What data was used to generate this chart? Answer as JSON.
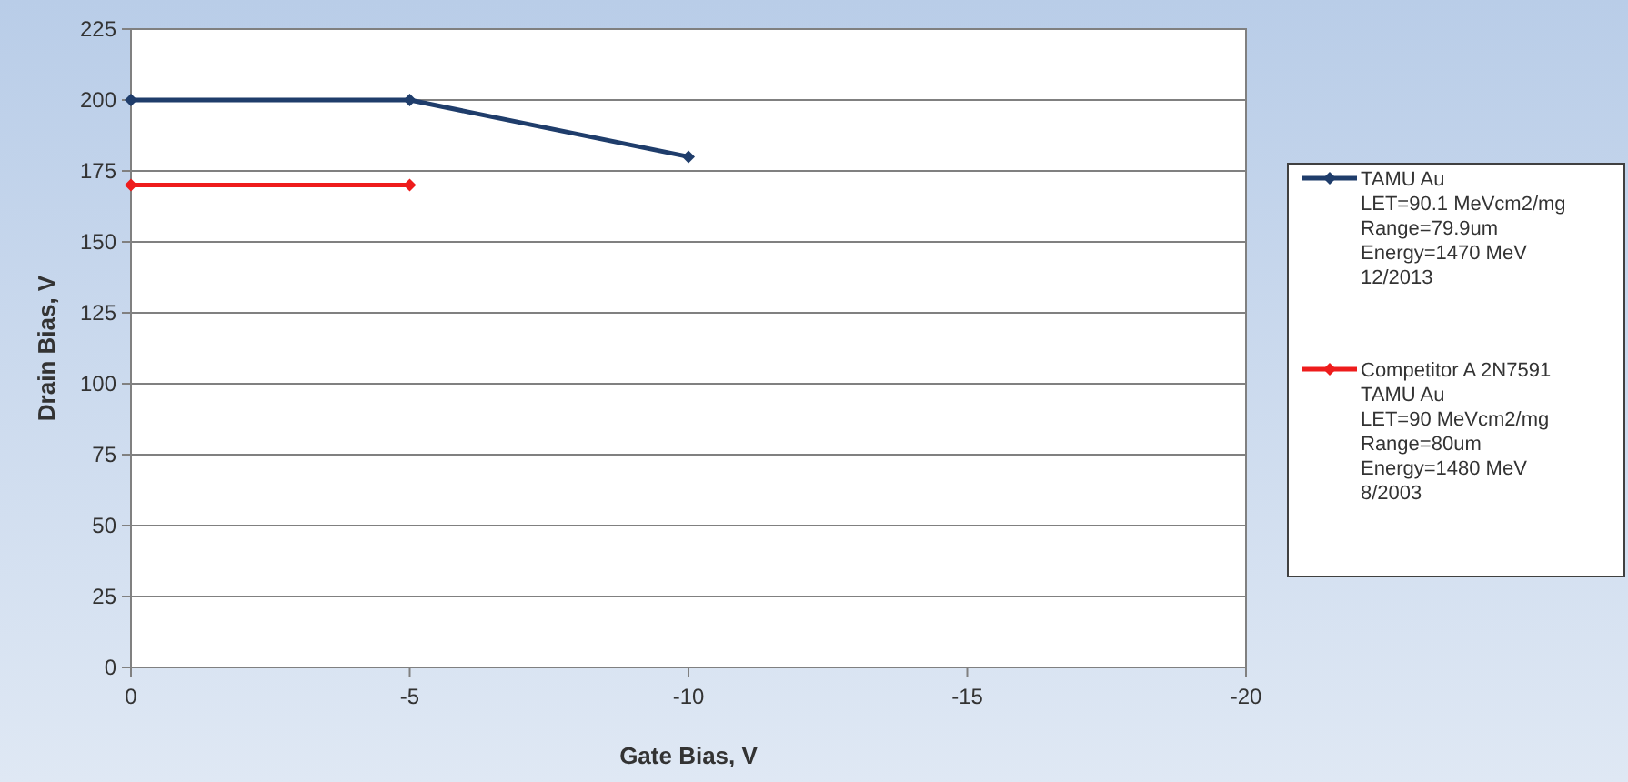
{
  "chart_data": {
    "type": "line",
    "xlabel": "Gate Bias, V",
    "ylabel": "Drain Bias, V",
    "x": [
      0,
      -5,
      -10
    ],
    "xlim": [
      0,
      -20
    ],
    "xticks": [
      0,
      -5,
      -10,
      -15,
      -20
    ],
    "ylim": [
      0,
      225
    ],
    "yticks": [
      0,
      25,
      50,
      75,
      100,
      125,
      150,
      175,
      200,
      225
    ],
    "grid": "y",
    "legend": "right",
    "marker": "diamond",
    "line_style": "solid",
    "series": [
      {
        "name": "TAMU Au\nLET=90.1  MeVcm2/mg\nRange=79.9um\nEnergy=1470 MeV\n12/2013",
        "color": "#1f3d6b",
        "values": [
          200,
          200,
          180
        ]
      },
      {
        "name": "Competitor A 2N7591\nTAMU Au\nLET=90  MeVcm2/mg\nRange=80um\nEnergy=1480 MeV\n8/2003",
        "color": "#ee1c1c",
        "x": [
          0,
          -5
        ],
        "values": [
          170,
          170
        ]
      }
    ]
  }
}
